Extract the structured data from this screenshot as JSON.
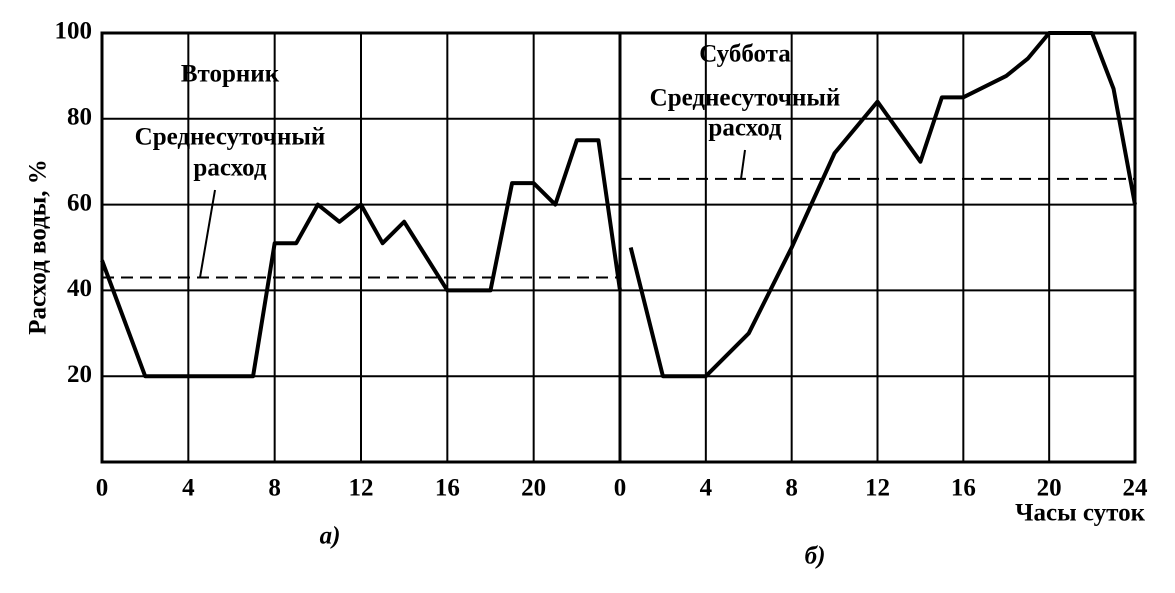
{
  "chart_data": [
    {
      "type": "line",
      "title": "а)",
      "ylabel": "Расход воды, %",
      "annotation": "Вторник",
      "mean_label": [
        "Среднесуточный",
        "расход"
      ],
      "x": [
        0,
        2,
        7,
        8,
        9,
        10,
        11,
        12,
        13,
        14,
        16,
        18,
        19,
        20,
        21,
        22,
        23,
        24
      ],
      "series": [
        {
          "name": "Расход",
          "color": "#000000",
          "values": [
            47,
            20,
            20,
            51,
            51,
            60,
            56,
            60,
            51,
            56,
            40,
            40,
            65,
            65,
            60,
            75,
            75,
            40
          ]
        }
      ],
      "mean": 43,
      "xlim": [
        0,
        24
      ],
      "xticks": [
        0,
        4,
        8,
        12,
        16,
        20,
        {
          "value": 24,
          "label": "0"
        }
      ],
      "ylim": [
        0,
        100
      ],
      "yticks": [
        20,
        40,
        60,
        80,
        100
      ],
      "grid": true
    },
    {
      "type": "line",
      "title": "б)",
      "xlabel": "Часы суток",
      "annotation": "Суббота",
      "mean_label": [
        "Среднесуточный",
        "расход"
      ],
      "x": [
        0.5,
        2,
        4,
        6,
        8,
        10,
        12,
        14,
        15,
        16,
        18,
        19,
        20,
        22,
        23,
        24
      ],
      "series": [
        {
          "name": "Расход",
          "color": "#000000",
          "values": [
            50,
            20,
            20,
            30,
            50,
            72,
            84,
            70,
            85,
            85,
            90,
            94,
            100,
            100,
            87,
            60
          ]
        }
      ],
      "mean": 66,
      "xlim": [
        0,
        24
      ],
      "xticks": [
        4,
        8,
        12,
        16,
        20,
        24
      ],
      "ylim": [
        0,
        100
      ],
      "grid": true
    }
  ]
}
